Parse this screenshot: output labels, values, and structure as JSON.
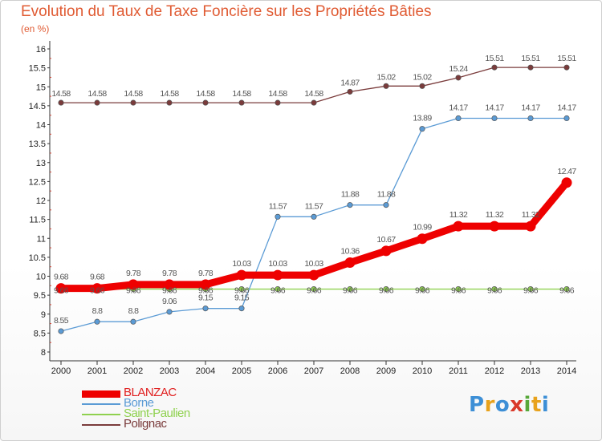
{
  "header": {
    "title": "Evolution du Taux de Taxe Foncière sur les Propriétés Bâties",
    "subtitle": "(en %)"
  },
  "brand": {
    "letters": [
      {
        "ch": "P",
        "color": "#3d8fd6"
      },
      {
        "ch": "r",
        "color": "#e8a21c"
      },
      {
        "ch": "o",
        "color": "#3d8fd6"
      },
      {
        "ch": "x",
        "color": "#d93a2b"
      },
      {
        "ch": "i",
        "color": "#57a83a"
      },
      {
        "ch": "t",
        "color": "#e8a21c"
      },
      {
        "ch": "i",
        "color": "#3d8fd6"
      }
    ]
  },
  "chart_data": {
    "type": "line",
    "title": "Evolution du Taux de Taxe Foncière sur les Propriétés Bâties",
    "ylabel": "(en %)",
    "x": [
      "2000",
      "2001",
      "2002",
      "2003",
      "2004",
      "2005",
      "2006",
      "2007",
      "2008",
      "2009",
      "2010",
      "2011",
      "2012",
      "2013",
      "2014"
    ],
    "ylim": [
      8,
      16
    ],
    "yticks": [
      "8",
      "8.5",
      "9",
      "9.5",
      "10",
      "10.5",
      "11",
      "11.5",
      "12",
      "12.5",
      "13",
      "13.5",
      "14",
      "14.5",
      "15",
      "15.5",
      "16"
    ],
    "grid": false,
    "legend_position": "bottom-left",
    "series": [
      {
        "name": "BLANZAC",
        "color": "#ee0000",
        "values": [
          9.68,
          9.68,
          9.78,
          9.78,
          9.78,
          10.03,
          10.03,
          10.03,
          10.36,
          10.67,
          10.99,
          11.32,
          11.32,
          11.32,
          12.47
        ],
        "labels": [
          "9.68",
          "9.68",
          "9.78",
          "9.78",
          "9.78",
          "10.03",
          "10.03",
          "10.03",
          "10.36",
          "10.67",
          "10.99",
          "11.32",
          "11.32",
          "11.32",
          "12.47"
        ]
      },
      {
        "name": "Borne",
        "color": "#5b9bd5",
        "values": [
          8.55,
          8.8,
          8.8,
          9.06,
          9.15,
          9.15,
          11.57,
          11.57,
          11.88,
          11.88,
          13.89,
          14.17,
          14.17,
          14.17,
          14.17
        ],
        "labels": [
          "8.55",
          "8.8",
          "8.8",
          "9.06",
          "9.15",
          "9.15",
          "11.57",
          "11.57",
          "11.88",
          "11.88",
          "13.89",
          "14.17",
          "14.17",
          "14.17",
          "14.17"
        ]
      },
      {
        "name": "Saint-Paulien",
        "color": "#8fd14f",
        "values": [
          9.66,
          9.66,
          9.66,
          9.66,
          9.66,
          9.66,
          9.66,
          9.66,
          9.66,
          9.66,
          9.66,
          9.66,
          9.66,
          9.66,
          9.66
        ],
        "labels": [
          "9.66",
          "9.66",
          "9.66",
          "9.66",
          "9.66",
          "9.66",
          "9.66",
          "9.66",
          "9.66",
          "9.66",
          "9.66",
          "9.66",
          "9.66",
          "9.66",
          "9.66"
        ]
      },
      {
        "name": "Polignac",
        "color": "#7a3b3b",
        "values": [
          14.58,
          14.58,
          14.58,
          14.58,
          14.58,
          14.58,
          14.58,
          14.58,
          14.87,
          15.02,
          15.02,
          15.24,
          15.51,
          15.51,
          15.51
        ],
        "labels": [
          "14.58",
          "14.58",
          "14.58",
          "14.58",
          "14.58",
          "14.58",
          "14.58",
          "14.58",
          "14.87",
          "15.02",
          "15.02",
          "15.24",
          "15.51",
          "15.51",
          "15.51"
        ]
      }
    ]
  }
}
